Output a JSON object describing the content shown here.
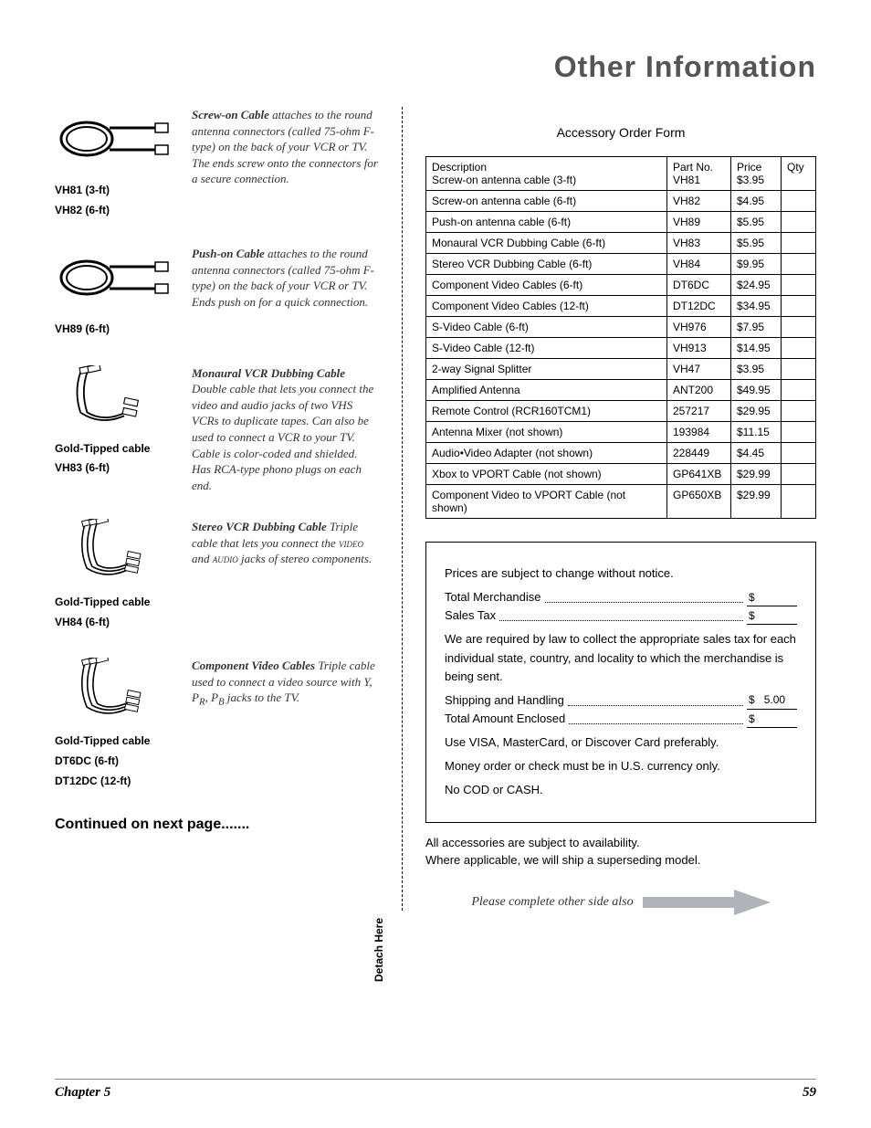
{
  "page_title": "Other Information",
  "products": [
    {
      "labels": [
        "VH81 (3-ft)",
        "VH82 (6-ft)"
      ],
      "name": "Screw-on Cable",
      "desc": " attaches to the round antenna connectors (called 75-ohm F-type) on the back of your VCR or TV. The ends screw onto the connectors for a secure connection.",
      "svg": "coax"
    },
    {
      "labels": [
        "VH89 (6-ft)"
      ],
      "name": "Push-on Cable",
      "desc": " attaches to the round antenna connectors (called 75-ohm F-type) on the back of your VCR or TV. Ends push on for a quick connection.",
      "svg": "coax2"
    },
    {
      "labels": [
        "Gold-Tipped cable",
        "VH83 (6-ft)"
      ],
      "name": "Monaural VCR Dubbing Cable",
      "desc": " Double cable that lets you connect the video and audio jacks of two VHS VCRs to duplicate tapes. Can also be used to connect a VCR to your TV. Cable is color-coded and shielded. Has RCA-type phono plugs on each end.",
      "svg": "rca2"
    },
    {
      "labels": [
        "Gold-Tipped cable",
        "VH84 (6-ft)"
      ],
      "name": "Stereo VCR Dubbing Cable",
      "desc_html": "Triple cable that lets you connect the <span class='smallcaps'>video</span> and <span class='smallcaps'>audio</span> jacks of stereo components.",
      "svg": "rca3"
    },
    {
      "labels": [
        "Gold-Tipped cable",
        "DT6DC (6-ft)",
        "DT12DC (12-ft)"
      ],
      "name": "Component Video Cables",
      "desc_html": "Triple cable used to connect a video source with Y, P<sub>R</sub>, P<sub>B</sub> jacks to the TV.",
      "svg": "rca3"
    }
  ],
  "continued": "Continued on next page.......",
  "form_title": "Accessory Order Form",
  "table": {
    "headers": {
      "desc": "Description",
      "part": "Part No.",
      "price": "Price",
      "qty": "Qty"
    },
    "rows": [
      {
        "desc": "Screw-on antenna cable (3-ft)",
        "part": "VH81",
        "price": "$3.95"
      },
      {
        "desc": "Screw-on antenna cable (6-ft)",
        "part": "VH82",
        "price": "$4.95"
      },
      {
        "desc": "Push-on antenna cable (6-ft)",
        "part": "VH89",
        "price": "$5.95"
      },
      {
        "desc": "Monaural VCR Dubbing Cable (6-ft)",
        "part": "VH83",
        "price": "$5.95"
      },
      {
        "desc": "Stereo VCR Dubbing Cable (6-ft)",
        "part": "VH84",
        "price": "$9.95"
      },
      {
        "desc": "Component Video Cables (6-ft)",
        "part": "DT6DC",
        "price": "$24.95"
      },
      {
        "desc": "Component Video Cables (12-ft)",
        "part": "DT12DC",
        "price": "$34.95"
      },
      {
        "desc": "S-Video Cable (6-ft)",
        "part": "VH976",
        "price": "$7.95"
      },
      {
        "desc": "S-Video Cable (12-ft)",
        "part": "VH913",
        "price": "$14.95"
      },
      {
        "desc": "2-way Signal Splitter",
        "part": "VH47",
        "price": "$3.95"
      },
      {
        "desc": "Amplified Antenna",
        "part": "ANT200",
        "price": "$49.95"
      },
      {
        "desc": "Remote Control (RCR160TCM1)",
        "part": "257217",
        "price": "$29.95"
      },
      {
        "desc": "Antenna Mixer (not shown)",
        "part": "193984",
        "price": "$11.15"
      },
      {
        "desc": "Audio•Video Adapter (not shown)",
        "part": "228449",
        "price": "$4.45"
      },
      {
        "desc": "Xbox to VPORT Cable (not shown)",
        "part": "GP641XB",
        "price": "$29.99"
      },
      {
        "desc": "Component Video to VPORT Cable (not shown)",
        "part": "GP650XB",
        "price": "$29.99"
      }
    ]
  },
  "totals": {
    "notice": "Prices are subject to change without notice.",
    "merch": "Total Merchandise",
    "tax": "Sales Tax",
    "tax_note": "We are required by law to collect the appropriate sales tax for each individual state, country, and locality to which the merchandise is being sent.",
    "ship": "Shipping and Handling",
    "ship_amt": "5.00",
    "total": "Total Amount Enclosed",
    "visa": "Use VISA, MasterCard, or Discover Card preferably.",
    "money": "Money order or check must be in U.S. currency only.",
    "cod": "No COD or CASH."
  },
  "notes": {
    "l1": "All accessories are subject to availability.",
    "l2": "Where applicable, we will ship a superseding model."
  },
  "arrow_text": "Please complete other side also",
  "detach": "Detach Here",
  "footer": {
    "chapter": "Chapter 5",
    "page": "59"
  },
  "colors": {
    "title": "#555555",
    "text": "#000000",
    "arrow": "#aeb4b9"
  }
}
